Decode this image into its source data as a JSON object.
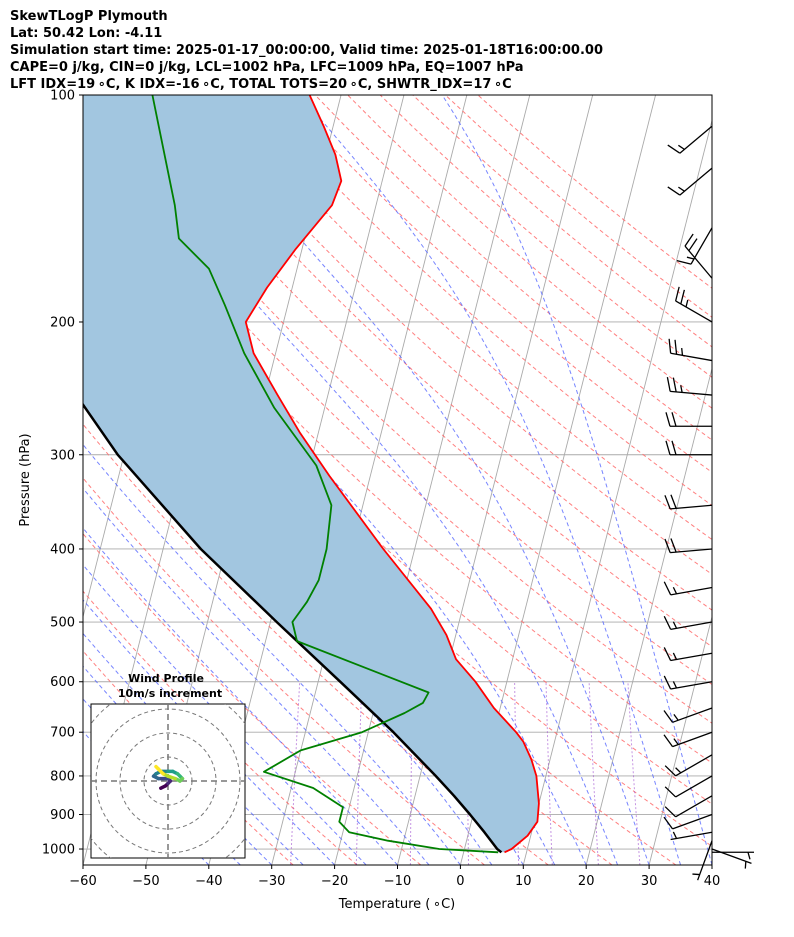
{
  "header": {
    "line1": "SkewTLogP Plymouth",
    "line2": "Lat: 50.42   Lon: -4.11",
    "line3": "Simulation start time: 2025-01-17_00:00:00, Valid time: 2025-01-18T16:00:00.00",
    "line4": "CAPE=0 j/kg, CIN=0 j/kg, LCL=1002 hPa, LFC=1009 hPa, EQ=1007 hPa",
    "line5": "LFT IDX=19 ∘C, K IDX=-16 ∘C, TOTAL TOTS=20 ∘C, SHWTR_IDX=17 ∘C"
  },
  "chart_data": {
    "type": "skew-t log-p",
    "xlabel": "Temperature ( ∘C)",
    "ylabel": "Pressure (hPa)",
    "xlim": [
      -60,
      40
    ],
    "ylim": [
      1050,
      100
    ],
    "y_scale": "log",
    "grid": true,
    "x_ticks": [
      -60,
      -50,
      -40,
      -30,
      -20,
      -10,
      0,
      10,
      20,
      30,
      40
    ],
    "x_tick_labels": [
      "−60",
      "−50",
      "−40",
      "−30",
      "−20",
      "−10",
      "0",
      "10",
      "20",
      "30",
      "40"
    ],
    "y_ticks": [
      1000,
      900,
      800,
      700,
      600,
      500,
      400,
      300,
      200,
      100
    ],
    "y_tick_labels": [
      "1000",
      "900",
      "800",
      "700",
      "600",
      "500",
      "400",
      "300",
      "200",
      "100"
    ],
    "colors": {
      "temperature": "#ff0000",
      "dewpoint": "#008000",
      "parcel": "#000000",
      "shading": "#a2c6e0",
      "dry_adiabat": "#ff6a6a",
      "moist_adiabat": "#4a5cff",
      "mixing_ratio": "#a050d0",
      "isotherm": "#aaaaaa"
    },
    "temperature": {
      "p": [
        1010,
        1000,
        960,
        920,
        870,
        800,
        760,
        720,
        700,
        650,
        600,
        560,
        520,
        480,
        400,
        320,
        280,
        250,
        220,
        200,
        180,
        160,
        140,
        130,
        120,
        110,
        100
      ],
      "t": [
        6.5,
        7.5,
        9.5,
        10.5,
        10.0,
        8.5,
        7.0,
        5.0,
        3.5,
        -1.0,
        -5.0,
        -9.0,
        -11.5,
        -15.0,
        -25.0,
        -36.5,
        -43.0,
        -48.0,
        -53.5,
        -56.0,
        -54.0,
        -51.0,
        -47.0,
        -46.5,
        -48.5,
        -51.5,
        -55.0
      ]
    },
    "dewpoint": {
      "p": [
        1010,
        1000,
        975,
        950,
        920,
        880,
        830,
        790,
        740,
        700,
        660,
        640,
        620,
        530,
        500,
        470,
        440,
        400,
        350,
        310,
        260,
        220,
        190,
        170,
        155,
        140,
        100
      ],
      "td": [
        5.5,
        -4.0,
        -12.5,
        -19.0,
        -21.0,
        -21.0,
        -26.5,
        -35.0,
        -30.0,
        -21.0,
        -15.0,
        -12.5,
        -12.0,
        -35.0,
        -36.5,
        -35.0,
        -34.0,
        -34.0,
        -35.0,
        -39.0,
        -48.0,
        -55.0,
        -60.0,
        -64.0,
        -70.0,
        -72.0,
        -80.0
      ]
    },
    "parcel": {
      "p": [
        1010,
        1000,
        950,
        900,
        850,
        800,
        700,
        600,
        500,
        400,
        300,
        200,
        100
      ],
      "t": [
        6.0,
        5.2,
        2.5,
        -0.5,
        -3.8,
        -7.5,
        -16.0,
        -26.5,
        -39.0,
        -54.0,
        -71.0,
        -91.0,
        -120.0
      ]
    },
    "wind_barbs": {
      "p": [
        1010,
        1000,
        975,
        950,
        900,
        850,
        800,
        750,
        700,
        650,
        600,
        550,
        500,
        450,
        400,
        350,
        300,
        275,
        250,
        225,
        200,
        175,
        150,
        125,
        110
      ],
      "direction_deg": [
        90,
        110,
        200,
        260,
        250,
        240,
        240,
        240,
        250,
        250,
        260,
        260,
        260,
        260,
        265,
        265,
        270,
        270,
        275,
        280,
        300,
        320,
        210,
        230,
        230
      ],
      "speed_kt": [
        8,
        6,
        5,
        5,
        10,
        10,
        10,
        15,
        15,
        15,
        15,
        15,
        15,
        15,
        20,
        20,
        20,
        20,
        25,
        25,
        25,
        20,
        15,
        15,
        15
      ]
    },
    "inset": {
      "title_line1": "Wind Profile",
      "title_line2": "10m/s increment",
      "hodograph_u": [
        -3,
        -1,
        0,
        1,
        0,
        -2,
        -4,
        -6,
        -5,
        -3,
        0,
        2,
        4,
        5,
        6,
        5,
        3,
        0,
        -2,
        -4,
        -5
      ],
      "hodograph_v": [
        -3,
        -2,
        -1,
        0,
        1,
        1,
        1,
        2,
        3,
        4,
        4,
        4,
        3,
        2,
        1,
        0,
        1,
        2,
        3,
        5,
        6
      ]
    }
  }
}
